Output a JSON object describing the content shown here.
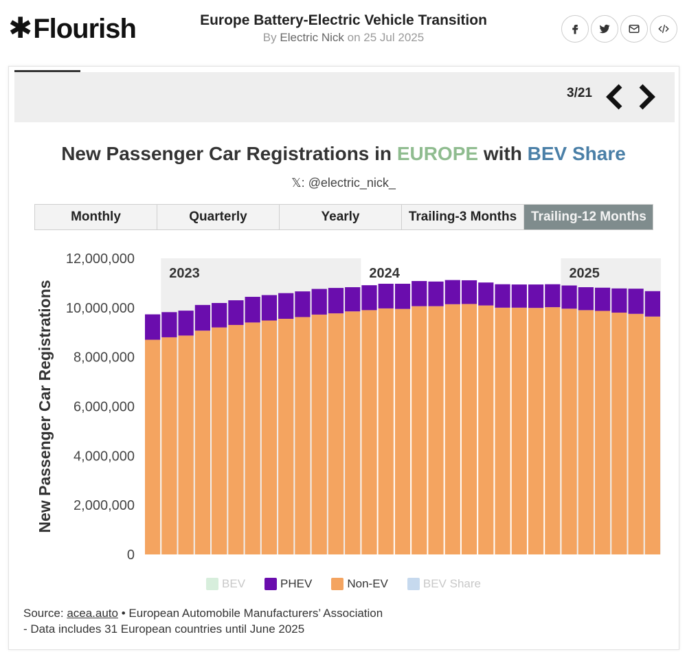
{
  "header": {
    "brand": "Flourish",
    "story_title": "Europe Battery-Electric Vehicle Transition",
    "by_prefix": "By",
    "author": "Electric Nick",
    "date_prefix": "on",
    "date": "25 Jul 2025",
    "share_icons": [
      "facebook-icon",
      "twitter-icon",
      "email-icon",
      "embed-code-icon"
    ]
  },
  "slides": {
    "counter": "3/21",
    "prev_icon": "chevron-left-icon",
    "next_icon": "chevron-right-icon"
  },
  "chart": {
    "title_pre": "New Passenger Car Registrations in ",
    "title_region": "EUROPE",
    "title_mid": " with ",
    "title_metric": "BEV Share",
    "title_region_color": "#8fbc8f",
    "title_metric_color": "#4a7fa7",
    "subtitle": "𝕏: @electric_nick_",
    "tabs": [
      "Monthly",
      "Quarterly",
      "Yearly",
      "Trailing-3 Months",
      "Trailing-12 Months"
    ],
    "active_tab": 4
  },
  "legend": [
    {
      "label": "BEV",
      "color": "#d7eedc",
      "dimmed": true
    },
    {
      "label": "PHEV",
      "color": "#6a0dad",
      "dimmed": false
    },
    {
      "label": "Non-EV",
      "color": "#f4a460",
      "dimmed": false
    },
    {
      "label": "BEV Share",
      "color": "#c6d9ee",
      "dimmed": true
    }
  ],
  "footer": {
    "source_label": "Source: ",
    "source_link": "acea.auto",
    "source_rest": " • European Automobile Manufacturers’ Association",
    "note": "- Data includes 31 European countries until June 2025"
  },
  "chart_data": {
    "type": "bar",
    "stacked": true,
    "ylabel": "New Passenger Car Registrations",
    "ylim": [
      0,
      12000000
    ],
    "yticks": [
      0,
      2000000,
      4000000,
      6000000,
      8000000,
      10000000,
      12000000
    ],
    "ytick_labels": [
      "0",
      "2,000,000",
      "4,000,000",
      "6,000,000",
      "8,000,000",
      "10,000,000",
      "12,000,000"
    ],
    "year_bands": [
      {
        "label": "2023",
        "start_index": 1,
        "end_index": 12,
        "shaded": true
      },
      {
        "label": "2024",
        "start_index": 13,
        "end_index": 24,
        "shaded": false
      },
      {
        "label": "2025",
        "start_index": 25,
        "end_index": 30,
        "shaded": true
      }
    ],
    "colors": {
      "Non-EV": "#f4a460",
      "PHEV": "#6a0dad",
      "BEV": "#d7eedc"
    },
    "series": [
      {
        "name": "Non-EV",
        "values": [
          8700000,
          8800000,
          8870000,
          9070000,
          9200000,
          9300000,
          9400000,
          9480000,
          9550000,
          9620000,
          9720000,
          9770000,
          9850000,
          9900000,
          9970000,
          9950000,
          10060000,
          10060000,
          10140000,
          10150000,
          10090000,
          10000000,
          10000000,
          9990000,
          10020000,
          9960000,
          9900000,
          9870000,
          9800000,
          9750000,
          9640000
        ]
      },
      {
        "name": "PHEV",
        "values": [
          1030000,
          1020000,
          1010000,
          1040000,
          990000,
          1000000,
          1040000,
          1030000,
          1040000,
          1040000,
          1040000,
          1030000,
          980000,
          1010000,
          1000000,
          1020000,
          1020000,
          1000000,
          980000,
          960000,
          930000,
          950000,
          940000,
          950000,
          930000,
          940000,
          930000,
          940000,
          980000,
          1020000,
          1030000
        ]
      }
    ]
  }
}
